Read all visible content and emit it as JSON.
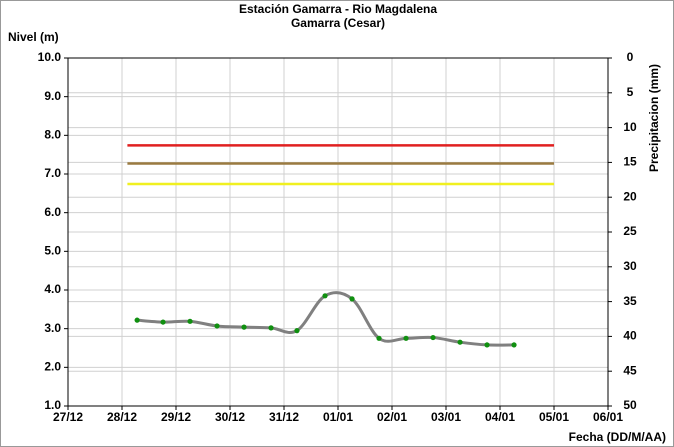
{
  "chart_data": {
    "type": "line",
    "title": "Estación Gamarra - Rio Magdalena",
    "subtitle": "Gamarra (Cesar)",
    "y_label": "Nivel (m)",
    "y2_label": "Precipitacion (mm)",
    "x_label": "Fecha (DD/M/AA)",
    "xlim": [
      0,
      10
    ],
    "xticks": [
      {
        "value": 0,
        "label": "27/12"
      },
      {
        "value": 1,
        "label": "28/12"
      },
      {
        "value": 2,
        "label": "29/12"
      },
      {
        "value": 3,
        "label": "30/12"
      },
      {
        "value": 4,
        "label": "31/12"
      },
      {
        "value": 5,
        "label": "01/01"
      },
      {
        "value": 6,
        "label": "02/01"
      },
      {
        "value": 7,
        "label": "03/01"
      },
      {
        "value": 8,
        "label": "04/01"
      },
      {
        "value": 9,
        "label": "05/01"
      },
      {
        "value": 10,
        "label": "06/01"
      }
    ],
    "ylim": [
      1,
      10
    ],
    "yticks": [
      {
        "value": 1,
        "label": "1.0"
      },
      {
        "value": 2,
        "label": "2.0"
      },
      {
        "value": 3,
        "label": "3.0"
      },
      {
        "value": 4,
        "label": "4.0"
      },
      {
        "value": 5,
        "label": "5.0"
      },
      {
        "value": 6,
        "label": "6.0"
      },
      {
        "value": 7,
        "label": "7.0"
      },
      {
        "value": 8,
        "label": "8.0"
      },
      {
        "value": 9,
        "label": "9.0"
      },
      {
        "value": 10,
        "label": "10.0"
      }
    ],
    "y2lim": [
      0,
      50
    ],
    "y2_reversed": true,
    "y2ticks": [
      0,
      5,
      10,
      15,
      20,
      25,
      30,
      35,
      40,
      45,
      50
    ],
    "grid": true,
    "series": [
      {
        "color": "#808080",
        "marker_color": "#109010",
        "x": [
          1.28,
          1.76,
          2.26,
          2.76,
          3.26,
          3.76,
          4.24,
          4.76,
          5.26,
          5.76,
          6.26,
          6.76,
          7.26,
          7.76,
          8.26
        ],
        "values": [
          3.22,
          3.17,
          3.19,
          3.07,
          3.04,
          3.02,
          2.95,
          3.85,
          3.77,
          2.75,
          2.75,
          2.77,
          2.65,
          2.58,
          2.58
        ]
      }
    ],
    "reference_lines": [
      {
        "color": "#e02020",
        "x": [
          1.1,
          9.0
        ],
        "value": 7.74
      },
      {
        "color": "#9a7a40",
        "x": [
          1.1,
          9.0
        ],
        "value": 7.27
      },
      {
        "color": "#f0f020",
        "x": [
          1.1,
          9.0
        ],
        "value": 6.74
      }
    ]
  }
}
